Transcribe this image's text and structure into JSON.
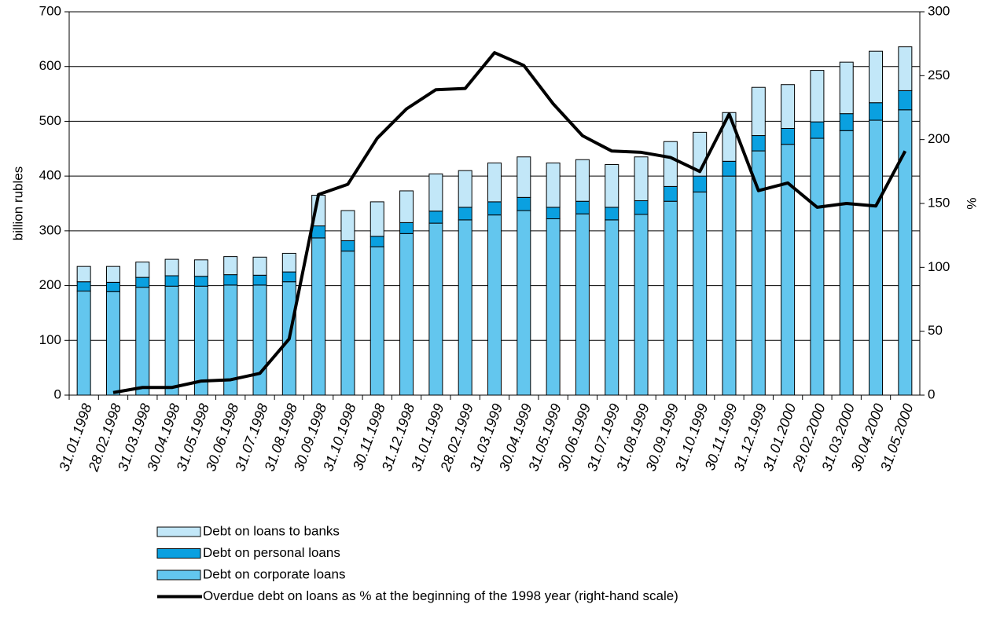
{
  "chart_data": {
    "type": "bar",
    "y_label": "billion rubles",
    "y2_label": "%",
    "categories": [
      "31.01.1998",
      "28.02.1998",
      "31.03.1998",
      "30.04.1998",
      "31.05.1998",
      "30.06.1998",
      "31.07.1998",
      "31.08.1998",
      "30.09.1998",
      "31.10.1998",
      "30.11.1998",
      "31.12.1998",
      "31.01.1999",
      "28.02.1999",
      "31.03.1999",
      "30.04.1999",
      "31.05.1999",
      "30.06.1999",
      "31.07.1999",
      "31.08.1999",
      "30.09.1999",
      "31.10.1999",
      "30.11.1999",
      "31.12.1999",
      "31.01.2000",
      "29.02.2000",
      "31.03.2000",
      "30.04.2000",
      "31.05.2000"
    ],
    "series": [
      {
        "name": "Debt on loans to banks",
        "color": "#c2e7f8",
        "values": [
          28,
          29,
          28,
          30,
          30,
          33,
          33,
          34,
          56,
          55,
          63,
          58,
          68,
          67,
          71,
          74,
          81,
          76,
          78,
          80,
          82,
          80,
          89,
          88,
          80,
          94,
          94,
          94,
          80
        ]
      },
      {
        "name": "Debt on personal loans",
        "color": "#0aa0e0",
        "values": [
          17,
          17,
          18,
          19,
          18,
          19,
          18,
          18,
          22,
          19,
          19,
          20,
          22,
          23,
          24,
          24,
          21,
          23,
          23,
          25,
          27,
          29,
          27,
          28,
          29,
          30,
          31,
          32,
          35
        ]
      },
      {
        "name": "Debt on corporate loans",
        "color": "#63c6ee",
        "values": [
          190,
          189,
          197,
          199,
          199,
          201,
          201,
          207,
          287,
          263,
          271,
          295,
          314,
          320,
          329,
          337,
          322,
          331,
          320,
          330,
          354,
          371,
          400,
          446,
          458,
          469,
          483,
          502,
          521
        ]
      },
      {
        "name": "Overdue debt on loans as % at the beginning of the 1998 year (right-hand scale)",
        "color": "#000000",
        "type": "line",
        "axis": "y2",
        "values": [
          null,
          2,
          6,
          6,
          11,
          12,
          17,
          44,
          157,
          165,
          201,
          224,
          239,
          240,
          268,
          258,
          228,
          203,
          191,
          190,
          186,
          175,
          220,
          160,
          166,
          147,
          150,
          148,
          191
        ]
      }
    ],
    "ylim": [
      0,
      700
    ],
    "yticks": [
      0,
      100,
      200,
      300,
      400,
      500,
      600,
      700
    ],
    "y2lim": [
      0,
      300
    ],
    "y2ticks": [
      0,
      50,
      100,
      150,
      200,
      250,
      300
    ],
    "grid": true
  }
}
